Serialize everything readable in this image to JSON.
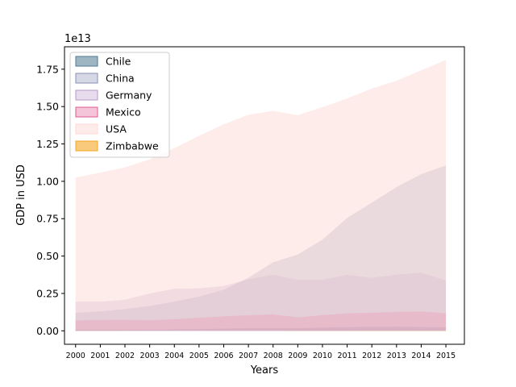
{
  "chart_data": {
    "type": "area",
    "title": "",
    "xlabel": "Years",
    "ylabel": "GDP in USD",
    "offset_text": "1e13",
    "x": [
      2000,
      2001,
      2002,
      2003,
      2004,
      2005,
      2006,
      2007,
      2008,
      2009,
      2010,
      2011,
      2012,
      2013,
      2014,
      2015
    ],
    "x_tick_labels": [
      "2000",
      "2001",
      "2002",
      "2003",
      "2004",
      "2005",
      "2006",
      "2007",
      "2008",
      "2009",
      "2010",
      "2011",
      "2012",
      "2013",
      "2014",
      "2015"
    ],
    "y_ticks": [
      0,
      0.25,
      0.5,
      0.75,
      1.0,
      1.25,
      1.5,
      1.75
    ],
    "y_tick_labels": [
      "0.00",
      "0.25",
      "0.50",
      "0.75",
      "1.00",
      "1.25",
      "1.50",
      "1.75"
    ],
    "y_multiplier": 10000000000000.0,
    "ylim": [
      -0.09,
      1.9
    ],
    "xlim": [
      1999.55,
      2015.75
    ],
    "grid": false,
    "legend_position": "top-left",
    "series": [
      {
        "name": "Chile",
        "color": "#4f7a8e",
        "opacity": 0.55,
        "values": [
          0.008,
          0.007,
          0.007,
          0.008,
          0.01,
          0.012,
          0.015,
          0.017,
          0.018,
          0.017,
          0.022,
          0.025,
          0.027,
          0.028,
          0.026,
          0.024
        ]
      },
      {
        "name": "China",
        "color": "#8a8fb5",
        "opacity": 0.35,
        "values": [
          0.12,
          0.13,
          0.145,
          0.166,
          0.195,
          0.229,
          0.275,
          0.355,
          0.459,
          0.51,
          0.61,
          0.755,
          0.857,
          0.961,
          1.048,
          1.106
        ]
      },
      {
        "name": "Germany",
        "color": "#b79ac8",
        "opacity": 0.35,
        "values": [
          0.195,
          0.195,
          0.208,
          0.25,
          0.281,
          0.284,
          0.3,
          0.344,
          0.375,
          0.341,
          0.34,
          0.374,
          0.354,
          0.375,
          0.389,
          0.336
        ]
      },
      {
        "name": "Mexico",
        "color": "#e05a90",
        "opacity": 0.35,
        "values": [
          0.07,
          0.073,
          0.074,
          0.071,
          0.077,
          0.087,
          0.097,
          0.104,
          0.11,
          0.09,
          0.105,
          0.117,
          0.12,
          0.127,
          0.13,
          0.117
        ]
      },
      {
        "name": "USA",
        "color": "#fddad6",
        "opacity": 0.5,
        "values": [
          1.025,
          1.058,
          1.094,
          1.146,
          1.222,
          1.304,
          1.381,
          1.445,
          1.471,
          1.442,
          1.496,
          1.554,
          1.62,
          1.673,
          1.742,
          1.812
        ]
      },
      {
        "name": "Zimbabwe",
        "color": "#f5a623",
        "opacity": 0.6,
        "values": [
          0.0007,
          0.0007,
          0.0006,
          0.0006,
          0.0006,
          0.0006,
          0.0005,
          0.0005,
          0.0004,
          0.0008,
          0.001,
          0.0012,
          0.0014,
          0.0015,
          0.0016,
          0.0016
        ]
      }
    ]
  }
}
